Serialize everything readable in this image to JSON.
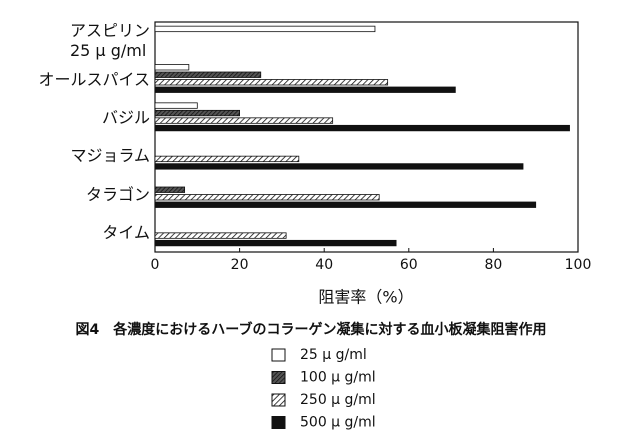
{
  "chart_data": {
    "type": "bar",
    "orientation": "horizontal",
    "title": "図4　各濃度におけるハーブのコラーゲン凝集に対する血小板凝集阻害作用",
    "x_label": "阻害率（%）",
    "categories": [
      "アスピリン\n25 μ g/ml",
      "オールスパイス",
      "バジル",
      "マジョラム",
      "タラゴン",
      "タイム"
    ],
    "series": [
      {
        "name": "25 μ g/ml",
        "color": "#ffffff",
        "pattern": "none",
        "values": [
          52,
          8,
          10,
          null,
          null,
          null
        ]
      },
      {
        "name": "100 μ g/ml",
        "color": "#333333",
        "pattern": "dense",
        "values": [
          null,
          25,
          20,
          null,
          7,
          null
        ]
      },
      {
        "name": "250 μ g/ml",
        "color": "#ffffff",
        "pattern": "diagonal",
        "values": [
          null,
          55,
          42,
          34,
          53,
          31
        ]
      },
      {
        "name": "500 μ g/ml",
        "color": "#111111",
        "pattern": "none",
        "values": [
          null,
          71,
          98,
          87,
          90,
          57
        ]
      }
    ],
    "xlim": [
      0,
      100
    ],
    "xticks": [
      0,
      20,
      40,
      60,
      80,
      100
    ],
    "grid": false,
    "legend": "bottom"
  }
}
